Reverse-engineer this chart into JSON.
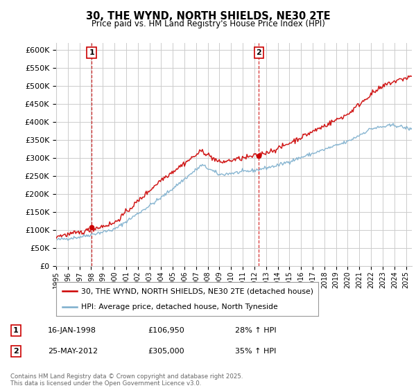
{
  "title": "30, THE WYND, NORTH SHIELDS, NE30 2TE",
  "subtitle": "Price paid vs. HM Land Registry's House Price Index (HPI)",
  "legend_line1": "30, THE WYND, NORTH SHIELDS, NE30 2TE (detached house)",
  "legend_line2": "HPI: Average price, detached house, North Tyneside",
  "annotation1_date": "16-JAN-1998",
  "annotation1_price": "£106,950",
  "annotation1_hpi": "28% ↑ HPI",
  "annotation2_date": "25-MAY-2012",
  "annotation2_price": "£305,000",
  "annotation2_hpi": "35% ↑ HPI",
  "copyright": "Contains HM Land Registry data © Crown copyright and database right 2025.\nThis data is licensed under the Open Government Licence v3.0.",
  "red_color": "#cc0000",
  "blue_color": "#7aadcc",
  "vline_color": "#cc0000",
  "grid_color": "#cccccc",
  "bg_color": "#ffffff",
  "ylim": [
    0,
    620000
  ],
  "yticks": [
    0,
    50000,
    100000,
    150000,
    200000,
    250000,
    300000,
    350000,
    400000,
    450000,
    500000,
    550000,
    600000
  ],
  "year_start": 1995,
  "year_end": 2025,
  "sale1_year": 1998.04,
  "sale2_year": 2012.39,
  "sale1_price": 106950,
  "sale2_price": 305000
}
